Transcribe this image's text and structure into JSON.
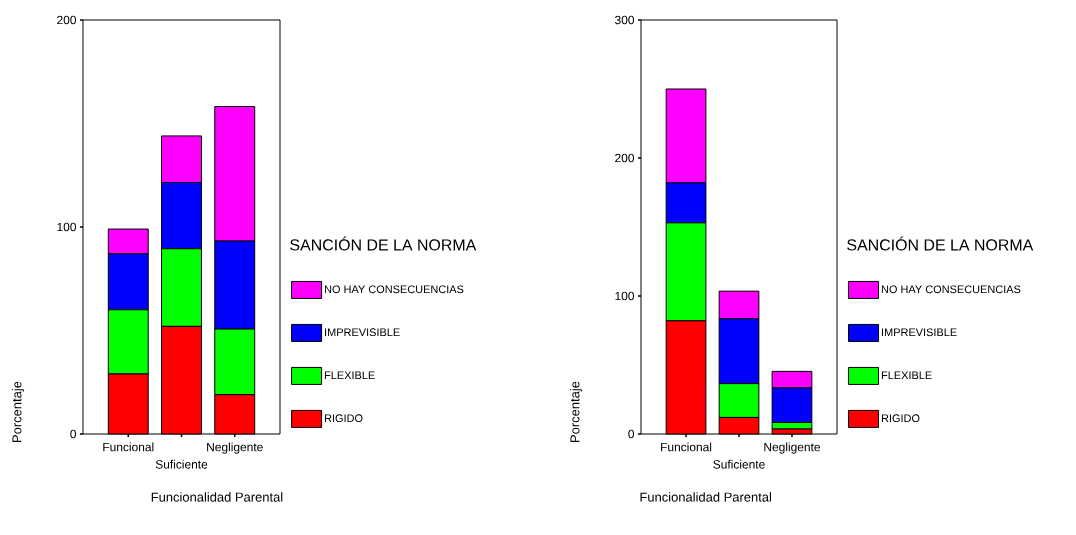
{
  "chart_data": [
    {
      "type": "bar",
      "stacked": true,
      "categories": [
        "Funcional",
        "Suficiente",
        "Negligente"
      ],
      "xlabel": "Funcionalidad Parental",
      "ylabel": "Porcentaje",
      "legend_title": "SANCIÓN DE LA NORMA",
      "legend": "right",
      "ylim": [
        0,
        200
      ],
      "yticks": [
        0,
        100,
        200
      ],
      "series": [
        {
          "name": "RIGIDO",
          "color": "#ff0000",
          "values": [
            29,
            52,
            19
          ]
        },
        {
          "name": "FLEXIBLE",
          "color": "#00ff00",
          "values": [
            31,
            37.5,
            31.7
          ]
        },
        {
          "name": "IMPREVISIBLE",
          "color": "#0000ff",
          "values": [
            27,
            32,
            42.5
          ]
        },
        {
          "name": "NO HAY CONSECUENCIAS",
          "color": "#ff00ff",
          "values": [
            12,
            22.5,
            65
          ]
        }
      ]
    },
    {
      "type": "bar",
      "stacked": true,
      "categories": [
        "Funcional",
        "Suficiente",
        "Negligente"
      ],
      "xlabel": "Funcionalidad Parental",
      "ylabel": "Porcentaje",
      "legend_title": "SANCIÓN DE LA NORMA",
      "legend": "right",
      "ylim": [
        0,
        300
      ],
      "yticks": [
        0,
        100,
        200,
        300
      ],
      "series": [
        {
          "name": "RIGIDO",
          "color": "#ff0000",
          "values": [
            82,
            12,
            3.6
          ]
        },
        {
          "name": "FLEXIBLE",
          "color": "#00ff00",
          "values": [
            71,
            24.5,
            4.8
          ]
        },
        {
          "name": "IMPREVISIBLE",
          "color": "#0000ff",
          "values": [
            29,
            47,
            25
          ]
        },
        {
          "name": "NO HAY CONSECUENCIAS",
          "color": "#ff00ff",
          "values": [
            68,
            20,
            12
          ]
        }
      ]
    }
  ]
}
